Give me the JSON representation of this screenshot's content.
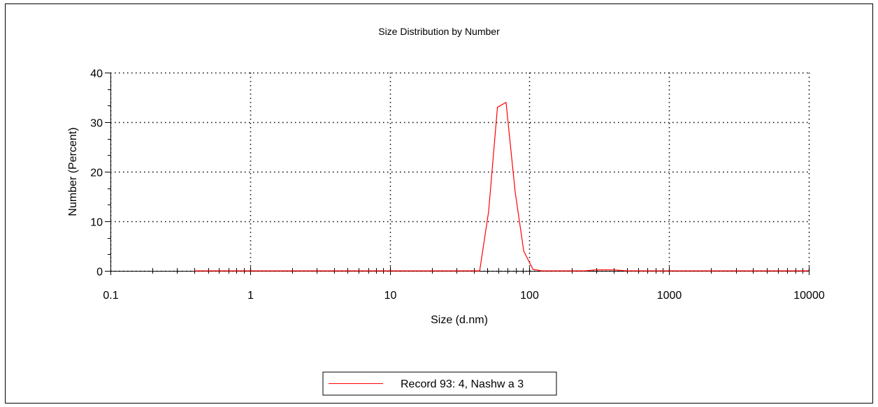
{
  "chart_data": {
    "type": "line",
    "title": "Size Distribution by Number",
    "xlabel": "Size (d.nm)",
    "ylabel": "Number (Percent)",
    "xscale": "log",
    "xlim": [
      0.1,
      10000
    ],
    "ylim": [
      0,
      40
    ],
    "xticks": [
      0.1,
      1,
      10,
      100,
      1000,
      10000
    ],
    "xtick_labels": [
      "0.1",
      "1",
      "10",
      "100",
      "1000",
      "10000"
    ],
    "yticks": [
      0,
      10,
      20,
      30,
      40
    ],
    "ytick_labels": [
      "0",
      "10",
      "20",
      "30",
      "40"
    ],
    "grid": true,
    "legend_position": "bottom-center",
    "series": [
      {
        "name": "Record 93: 4, Nashw a 3",
        "color": "#ff0000",
        "x": [
          0.4,
          1,
          10,
          30,
          44,
          51,
          59,
          68,
          79,
          91,
          106,
          122,
          142,
          250,
          300,
          400,
          500,
          1000,
          10000
        ],
        "y": [
          0,
          0,
          0,
          0,
          0,
          12,
          33,
          34,
          16,
          4,
          0.3,
          0,
          0,
          0,
          0.2,
          0.2,
          0,
          0,
          0
        ]
      }
    ]
  }
}
